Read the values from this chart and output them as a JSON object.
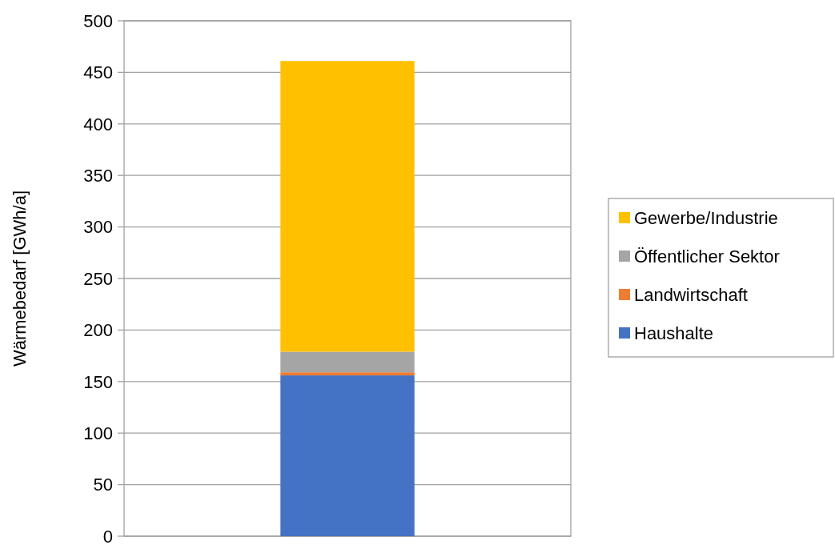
{
  "chart_data": {
    "type": "bar",
    "stacked": true,
    "ylabel": "Wärmebedarf [GWh/a]",
    "categories": [
      null
    ],
    "series": [
      {
        "name": "Haushalte",
        "color": "#4472c4",
        "values": [
          156
        ]
      },
      {
        "name": "Landwirtschaft",
        "color": "#ed7d31",
        "values": [
          3
        ]
      },
      {
        "name": "Öffentlicher Sektor",
        "color": "#a5a5a5",
        "values": [
          20
        ]
      },
      {
        "name": "Gewerbe/Industrie",
        "color": "#ffc000",
        "values": [
          282
        ]
      }
    ],
    "ylim": [
      0,
      500
    ],
    "yticks": [
      0,
      50,
      100,
      150,
      200,
      250,
      300,
      350,
      400,
      450,
      500
    ],
    "grid": "y",
    "legend": "right"
  }
}
